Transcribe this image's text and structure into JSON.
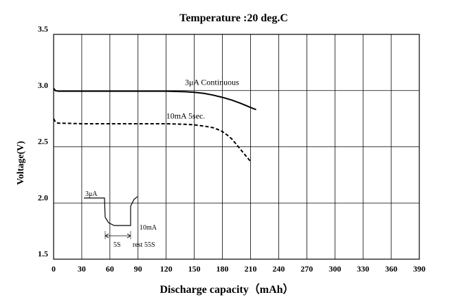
{
  "chart_data": {
    "type": "line",
    "title": "Temperature :20 deg.C",
    "xlabel": "Discharge capacity（mAh）",
    "ylabel": "Voltage(V)",
    "xlim": [
      0,
      390
    ],
    "ylim": [
      1.5,
      3.5
    ],
    "xticks": [
      "0",
      "30",
      "60",
      "90",
      "120",
      "150",
      "180",
      "210",
      "240",
      "270",
      "300",
      "330",
      "360",
      "390"
    ],
    "yticks": [
      "1.5",
      "2.0",
      "2.5",
      "3.0",
      "3.5"
    ],
    "grid": true,
    "series": [
      {
        "name": "3μA Continuous",
        "style": "solid",
        "color": "#000000",
        "x": [
          0,
          2,
          5,
          10,
          20,
          40,
          60,
          80,
          100,
          120,
          140,
          150,
          160,
          170,
          180,
          190,
          200,
          210,
          216
        ],
        "y": [
          3.02,
          3.0,
          2.995,
          2.995,
          2.995,
          2.995,
          2.995,
          2.995,
          2.995,
          2.995,
          2.99,
          2.985,
          2.975,
          2.96,
          2.94,
          2.915,
          2.885,
          2.85,
          2.83
        ]
      },
      {
        "name": "10mA  5sec.",
        "style": "dashed",
        "color": "#000000",
        "x": [
          0,
          2,
          5,
          10,
          30,
          60,
          90,
          120,
          140,
          150,
          160,
          170,
          175,
          180,
          185,
          190,
          195,
          200,
          205,
          210
        ],
        "y": [
          2.75,
          2.72,
          2.71,
          2.71,
          2.705,
          2.705,
          2.705,
          2.705,
          2.7,
          2.695,
          2.685,
          2.67,
          2.655,
          2.635,
          2.605,
          2.57,
          2.52,
          2.47,
          2.42,
          2.37
        ]
      }
    ],
    "inset": {
      "top_label": "3μA",
      "bottom_label": "10mA",
      "pulse_label": "5S",
      "rest_label": "rest 55S"
    }
  }
}
